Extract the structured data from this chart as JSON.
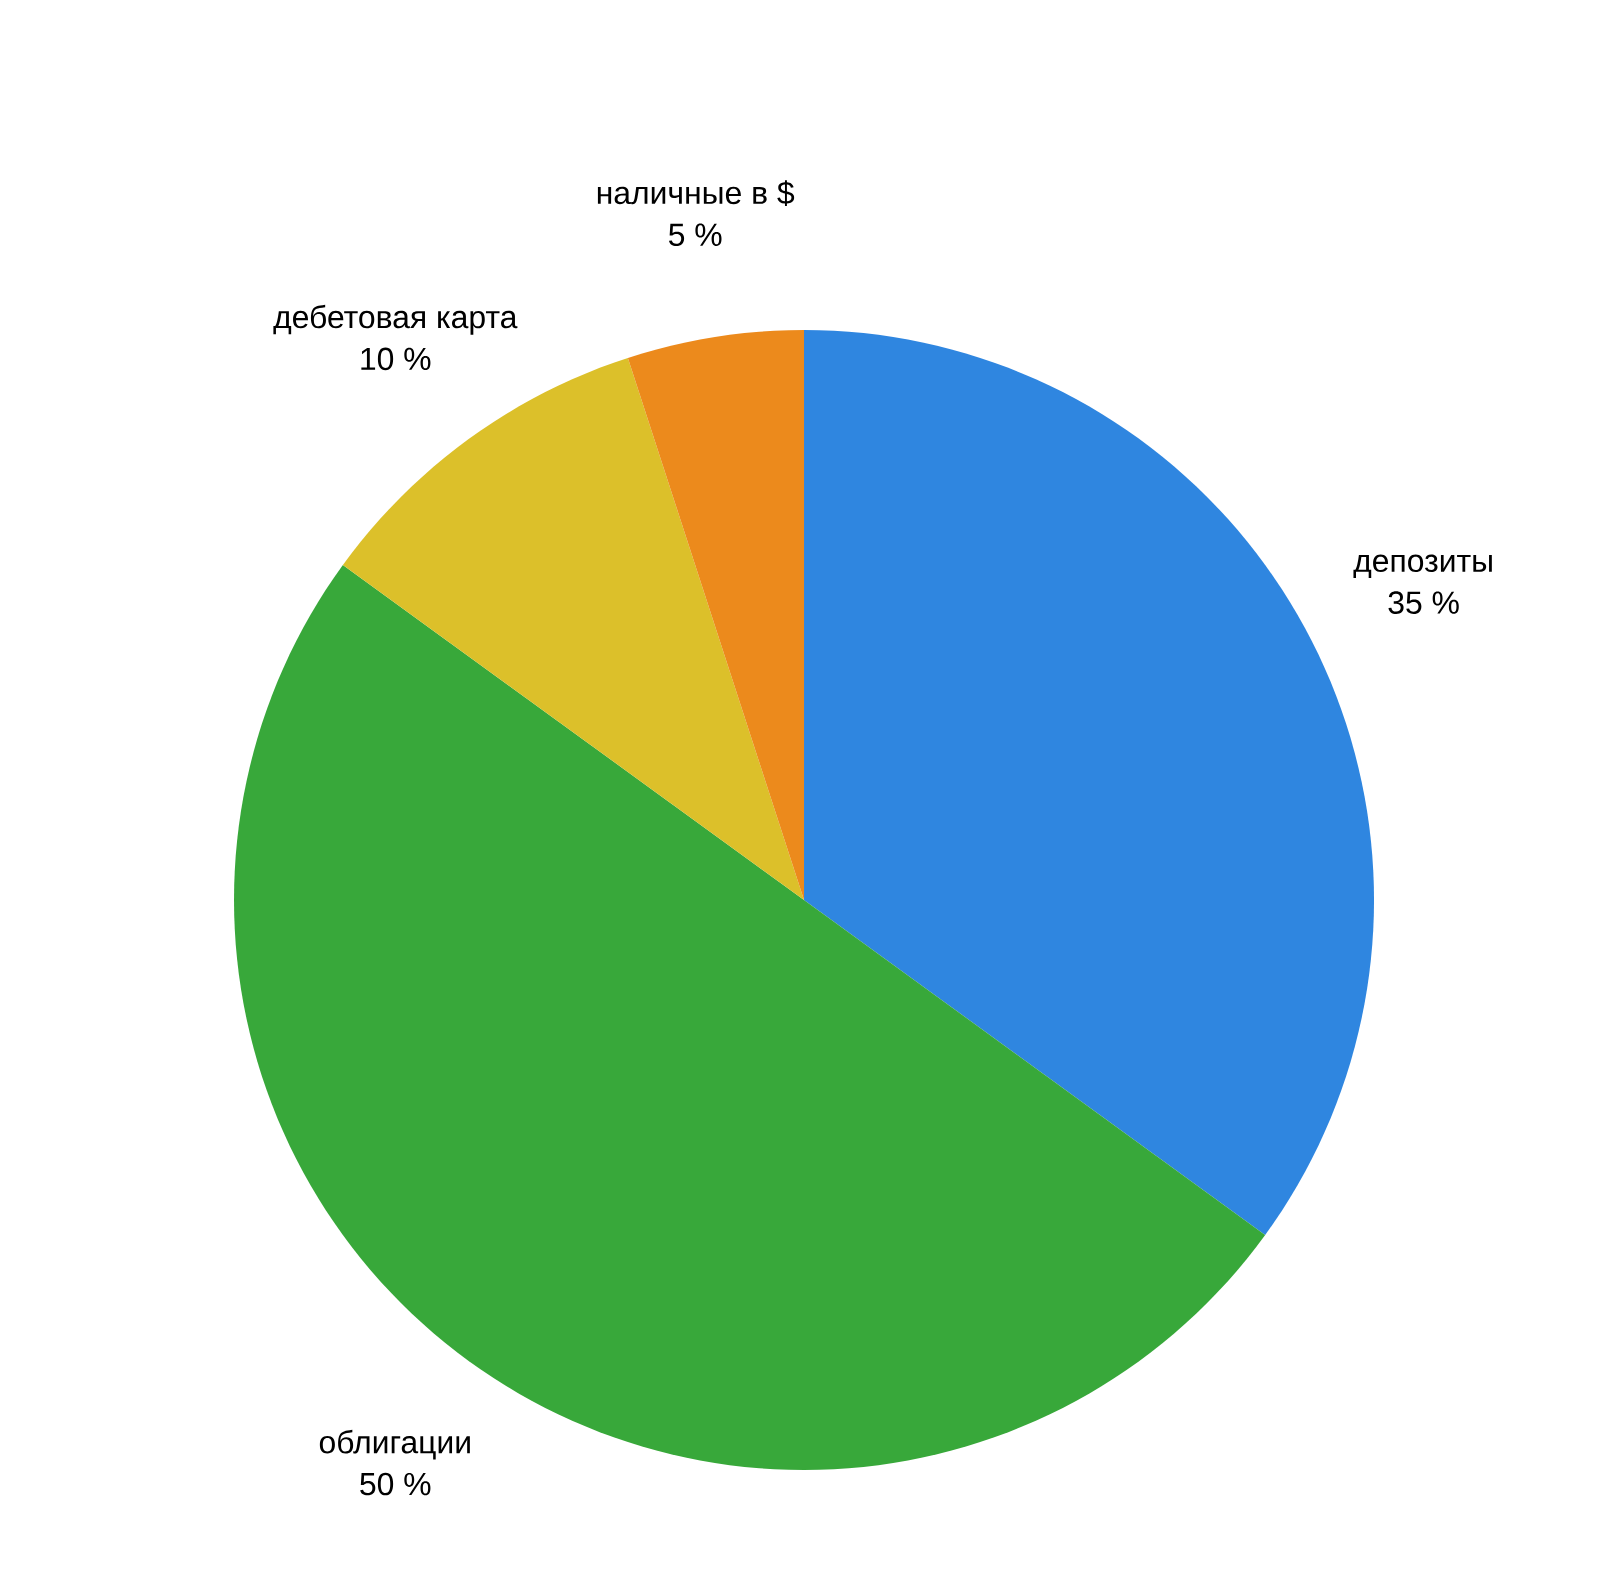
{
  "chart_data": {
    "type": "pie",
    "categories": [
      "депозиты",
      "облигации",
      "дебетовая карта",
      "наличные в  $"
    ],
    "values": [
      35,
      50,
      10,
      5
    ],
    "value_labels": [
      "35 %",
      "50 %",
      "10 %",
      "5 %"
    ],
    "colors": [
      "#2f86e0",
      "#38a83a",
      "#dcc02a",
      "#ec8a1c"
    ]
  }
}
